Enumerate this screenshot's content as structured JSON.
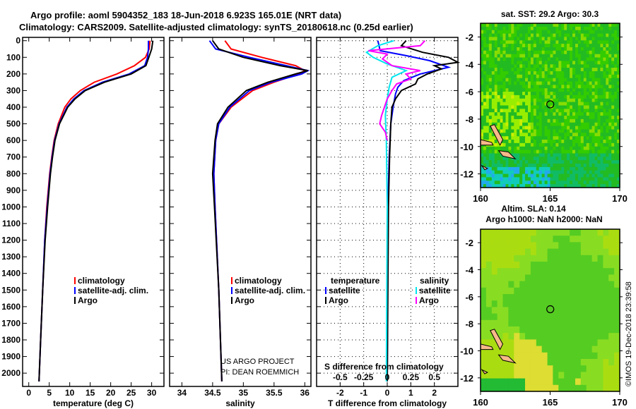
{
  "title_line1": "Argo profile: aoml 5904352_183 18-Jun-2018 6.923S 165.01E (NRT data)",
  "title_line2": "Climatology: CARS2009. Satellite-adjusted climatology: synTS_20180618.nc (0.25d earlier)",
  "credit": "©IMOS 19-Dec-2018 23:39:58",
  "project_line1": "US ARGO PROJECT",
  "project_line2": "PI: DEAN ROEMMICH",
  "colors": {
    "climatology": "#ff0000",
    "satellite": "#0000ff",
    "argo": "#000000",
    "sal_satellite": "#00e5ee",
    "sal_argo": "#ff00ff"
  },
  "chart_data": [
    {
      "type": "line",
      "xlabel": "temperature (deg C)",
      "ylabel": "",
      "xlim": [
        -1.5,
        33
      ],
      "ylim": [
        2080,
        -20
      ],
      "xticks": [
        0,
        5,
        10,
        15,
        20,
        25,
        30
      ],
      "yticks": [
        0,
        100,
        200,
        300,
        400,
        500,
        600,
        700,
        800,
        900,
        1000,
        1100,
        1200,
        1300,
        1400,
        1500,
        1600,
        1700,
        1800,
        1900,
        2000
      ],
      "legend": [
        "climatology",
        "satellite-adj. clim.",
        "Argo"
      ],
      "series": [
        {
          "name": "climatology",
          "color": "#ff0000",
          "depth": [
            0,
            50,
            100,
            150,
            200,
            250,
            300,
            350,
            400,
            500,
            600,
            700,
            800,
            1000,
            1200,
            1500,
            1800,
            2050
          ],
          "values": [
            29.6,
            29.4,
            28.5,
            25.8,
            21.5,
            16,
            12.6,
            10.3,
            8.8,
            7.2,
            6.2,
            5.6,
            5.1,
            4.4,
            3.9,
            3.4,
            2.9,
            2.5
          ]
        },
        {
          "name": "satellite-adj. clim.",
          "color": "#0000ff",
          "depth": [
            0,
            50,
            100,
            150,
            200,
            250,
            300,
            350,
            400,
            500,
            600,
            700,
            800,
            1000,
            1200,
            1500,
            1800,
            2050
          ],
          "values": [
            29.2,
            29.2,
            29.0,
            28.3,
            24.5,
            18,
            13.5,
            11,
            9.3,
            7.4,
            6.3,
            5.7,
            5.2,
            4.5,
            3.9,
            3.4,
            2.9,
            2.5
          ]
        },
        {
          "name": "Argo",
          "color": "#000000",
          "depth": [
            0,
            50,
            100,
            150,
            200,
            250,
            300,
            350,
            400,
            500,
            600,
            700,
            800,
            1000,
            1200,
            1500,
            1800,
            2050
          ],
          "values": [
            30.3,
            30.0,
            29.3,
            28.6,
            25,
            18.5,
            13.8,
            11.3,
            9.5,
            7.5,
            6.4,
            5.8,
            5.3,
            4.6,
            4.0,
            3.4,
            2.9,
            2.5
          ]
        }
      ]
    },
    {
      "type": "line",
      "xlabel": "salinity",
      "xlim": [
        33.8,
        36.1
      ],
      "ylim": [
        2080,
        -20
      ],
      "xticks": [
        34,
        34.5,
        35,
        35.5,
        36
      ],
      "xticklabels": [
        "34",
        "34.5",
        "35",
        "35.5",
        "36"
      ],
      "legend": [
        "climatology",
        "satellite-adj. clim.",
        "Argo"
      ],
      "series": [
        {
          "name": "climatology",
          "color": "#ff0000",
          "depth": [
            0,
            50,
            100,
            150,
            180,
            200,
            250,
            300,
            400,
            500,
            600,
            800,
            1000,
            1500,
            2050
          ],
          "values": [
            34.7,
            34.8,
            35.3,
            35.85,
            36.0,
            35.9,
            35.5,
            35.15,
            34.8,
            34.6,
            34.55,
            34.52,
            34.54,
            34.6,
            34.65
          ]
        },
        {
          "name": "satellite-adj. clim.",
          "color": "#0000ff",
          "depth": [
            0,
            50,
            100,
            150,
            180,
            200,
            250,
            300,
            400,
            500,
            600,
            800,
            1000,
            1500,
            2050
          ],
          "values": [
            34.45,
            34.55,
            35.1,
            35.7,
            36.05,
            35.95,
            35.45,
            35.1,
            34.78,
            34.6,
            34.55,
            34.52,
            34.54,
            34.6,
            34.65
          ]
        },
        {
          "name": "Argo",
          "color": "#000000",
          "depth": [
            0,
            50,
            100,
            150,
            180,
            200,
            250,
            300,
            400,
            500,
            600,
            800,
            1000,
            1500,
            2050
          ],
          "values": [
            34.5,
            34.6,
            35.0,
            35.6,
            36.05,
            35.85,
            35.4,
            35.05,
            34.75,
            34.58,
            34.54,
            34.5,
            34.53,
            34.6,
            34.65
          ]
        }
      ]
    },
    {
      "type": "line",
      "xlabel": "T difference from climatology",
      "x2label": "S difference from climatology",
      "xlim": [
        -3,
        3
      ],
      "x2lim": [
        -0.75,
        0.75
      ],
      "ylim": [
        2080,
        -20
      ],
      "xticks": [
        -2,
        -1,
        0,
        1,
        2
      ],
      "x2ticks": [
        -0.5,
        -0.25,
        0,
        0.25,
        0.5
      ],
      "x2ticklabels": [
        "-0.5",
        "-0.25",
        "0",
        "0.25",
        "0.5"
      ],
      "legend_headings": [
        "temperature",
        "salinity"
      ],
      "legend": [
        "satellite",
        "Argo",
        "satellite",
        "Argo"
      ],
      "series": [
        {
          "name": "T satellite",
          "axis": "T",
          "color": "#0000ff",
          "depth": [
            0,
            60,
            90,
            120,
            160,
            200,
            240,
            280,
            320,
            400,
            500,
            700,
            1000,
            2050
          ],
          "values": [
            -0.4,
            -0.3,
            0.8,
            1.8,
            2.6,
            1.4,
            0.7,
            0.45,
            0.35,
            0.25,
            0.15,
            0.08,
            0.03,
            0.0
          ]
        },
        {
          "name": "T Argo",
          "axis": "T",
          "color": "#000000",
          "depth": [
            0,
            30,
            70,
            100,
            130,
            150,
            170,
            200,
            230,
            260,
            300,
            350,
            400,
            500,
            700,
            1000,
            2050
          ],
          "values": [
            0.8,
            0.6,
            1.5,
            2.6,
            3.0,
            2.0,
            2.3,
            1.7,
            1.3,
            1.2,
            0.6,
            0.35,
            0.2,
            0.15,
            0.1,
            0.05,
            0.0
          ]
        },
        {
          "name": "S satellite",
          "axis": "S",
          "color": "#00e5ee",
          "depth": [
            0,
            30,
            70,
            100,
            140,
            180,
            220,
            280,
            350,
            450,
            600,
            1000,
            2050
          ],
          "values": [
            0.07,
            -0.1,
            -0.22,
            -0.15,
            0.0,
            0.2,
            0.05,
            0.02,
            0.0,
            -0.02,
            -0.01,
            0.0,
            -0.01
          ]
        },
        {
          "name": "S Argo",
          "axis": "S",
          "color": "#ff00ff",
          "depth": [
            0,
            30,
            60,
            80,
            110,
            150,
            180,
            200,
            230,
            260,
            300,
            350,
            450,
            500,
            550,
            600
          ],
          "values": [
            0.4,
            0.35,
            -0.2,
            0.0,
            -0.05,
            0.05,
            0.35,
            0.2,
            0.25,
            0.1,
            0.05,
            0.0,
            -0.06,
            -0.08,
            -0.02,
            0.0
          ]
        }
      ]
    },
    {
      "type": "heatmap",
      "title": "sat. SST: 29.2 Argo: 30.3",
      "xlim": [
        160,
        170
      ],
      "ylim": [
        -13,
        -1
      ],
      "xticks": [
        160,
        165,
        170
      ],
      "yticks": [
        -2,
        -4,
        -6,
        -8,
        -10,
        -12
      ],
      "marker": {
        "lon": 165.01,
        "lat": -6.923
      }
    },
    {
      "type": "heatmap",
      "title": "Altim. SLA: 0.14",
      "subtitle": "Argo h1000: NaN h2000: NaN",
      "xlim": [
        160,
        170
      ],
      "ylim": [
        -13,
        -1
      ],
      "xticks": [
        160,
        165,
        170
      ],
      "yticks": [
        -2,
        -4,
        -6,
        -8,
        -10,
        -12
      ],
      "marker": {
        "lon": 165.01,
        "lat": -6.923
      }
    }
  ]
}
